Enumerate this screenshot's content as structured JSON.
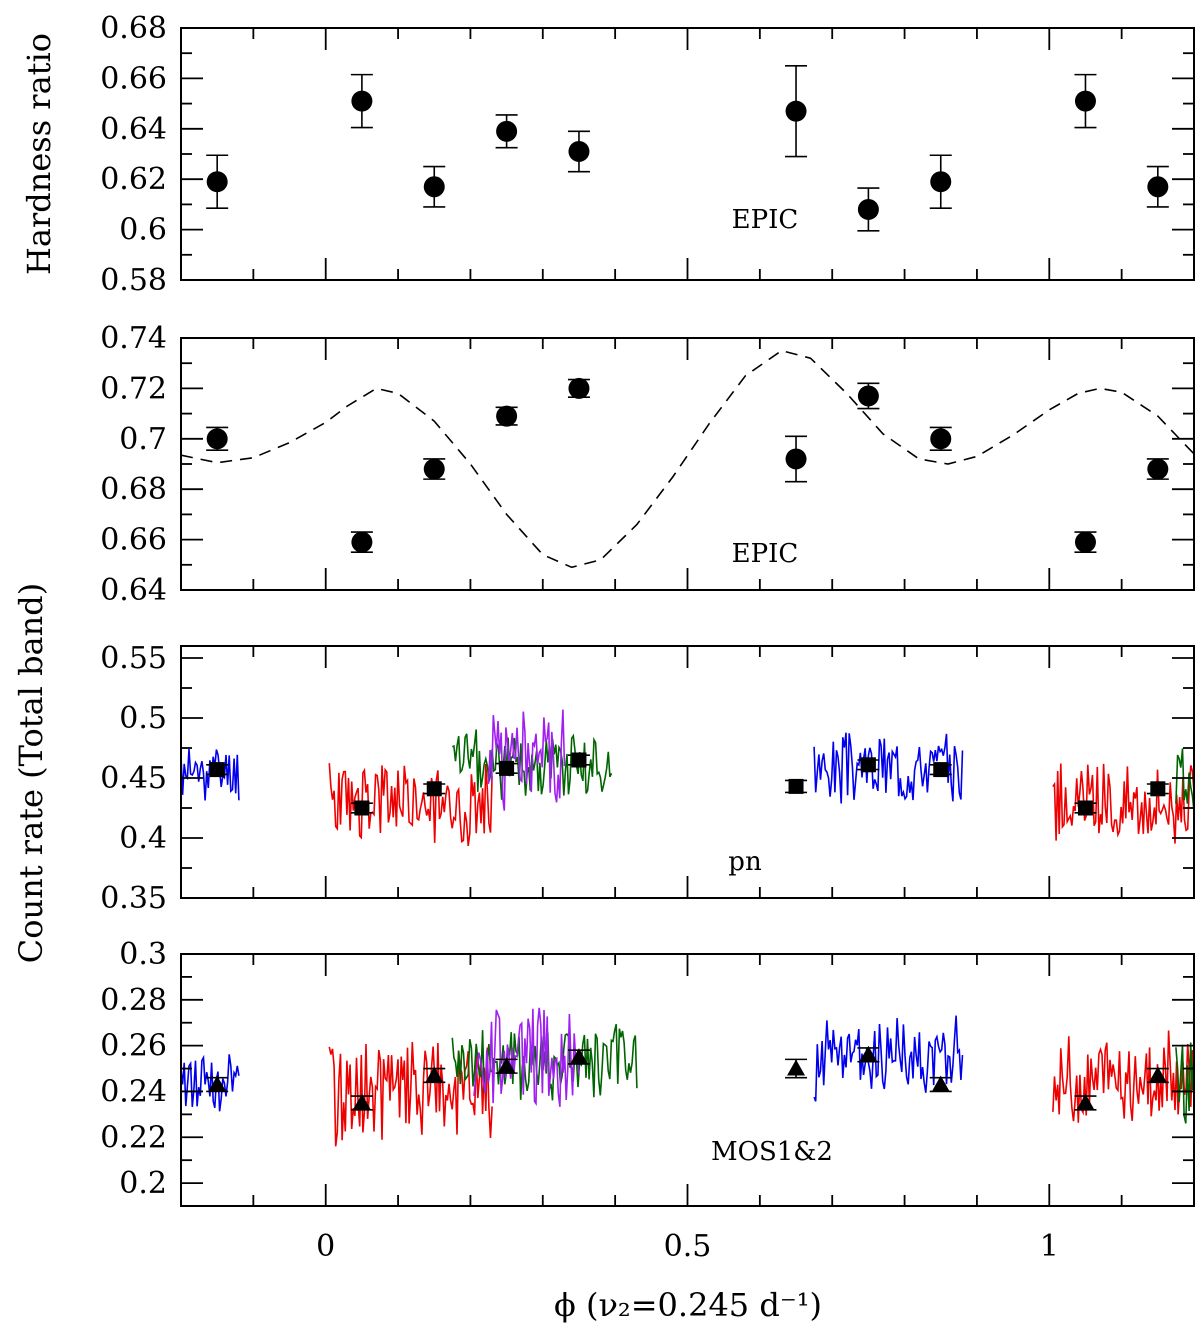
{
  "chart_data": [
    {
      "type": "scatter",
      "panel": "hardness-ratio",
      "xlim": [
        -0.2,
        1.2
      ],
      "ylim": [
        0.58,
        0.68
      ],
      "yticks": [
        "0.58",
        "0.6",
        "0.62",
        "0.64",
        "0.66",
        "0.68"
      ],
      "ylabel": "Hardness ratio",
      "annotation": "EPIC",
      "marker": "circle",
      "points": [
        {
          "x": -0.15,
          "y": 0.619,
          "err": 0.0105
        },
        {
          "x": 0.05,
          "y": 0.651,
          "err": 0.0105
        },
        {
          "x": 0.15,
          "y": 0.617,
          "err": 0.008
        },
        {
          "x": 0.25,
          "y": 0.639,
          "err": 0.0065
        },
        {
          "x": 0.35,
          "y": 0.631,
          "err": 0.008
        },
        {
          "x": 0.65,
          "y": 0.647,
          "err": 0.018
        },
        {
          "x": 0.75,
          "y": 0.608,
          "err": 0.0085
        },
        {
          "x": 0.85,
          "y": 0.619,
          "err": 0.0105
        },
        {
          "x": 1.05,
          "y": 0.651,
          "err": 0.0105
        },
        {
          "x": 1.15,
          "y": 0.617,
          "err": 0.008
        }
      ]
    },
    {
      "type": "scatter",
      "panel": "count-rate-epic",
      "xlim": [
        -0.2,
        1.2
      ],
      "ylim": [
        0.64,
        0.74
      ],
      "yticks": [
        "0.64",
        "0.66",
        "0.68",
        "0.7",
        "0.72",
        "0.74"
      ],
      "annotation": "EPIC",
      "marker": "circle",
      "model_curve": "dashed",
      "points": [
        {
          "x": -0.15,
          "y": 0.7,
          "err": 0.0045
        },
        {
          "x": 0.05,
          "y": 0.659,
          "err": 0.004
        },
        {
          "x": 0.15,
          "y": 0.688,
          "err": 0.004
        },
        {
          "x": 0.25,
          "y": 0.709,
          "err": 0.0035
        },
        {
          "x": 0.35,
          "y": 0.72,
          "err": 0.0035
        },
        {
          "x": 0.65,
          "y": 0.692,
          "err": 0.009
        },
        {
          "x": 0.75,
          "y": 0.717,
          "err": 0.005
        },
        {
          "x": 0.85,
          "y": 0.7,
          "err": 0.0045
        },
        {
          "x": 1.05,
          "y": 0.659,
          "err": 0.004
        },
        {
          "x": 1.15,
          "y": 0.688,
          "err": 0.004
        }
      ],
      "model": [
        {
          "x": -0.2,
          "y": 0.6935
        },
        {
          "x": -0.15,
          "y": 0.6905
        },
        {
          "x": -0.1,
          "y": 0.6925
        },
        {
          "x": -0.05,
          "y": 0.6985
        },
        {
          "x": 0.0,
          "y": 0.7065
        },
        {
          "x": 0.03,
          "y": 0.713
        },
        {
          "x": 0.07,
          "y": 0.72
        },
        {
          "x": 0.1,
          "y": 0.718
        },
        {
          "x": 0.15,
          "y": 0.707
        },
        {
          "x": 0.2,
          "y": 0.69
        },
        {
          "x": 0.25,
          "y": 0.67
        },
        {
          "x": 0.3,
          "y": 0.654
        },
        {
          "x": 0.34,
          "y": 0.649
        },
        {
          "x": 0.38,
          "y": 0.652
        },
        {
          "x": 0.43,
          "y": 0.666
        },
        {
          "x": 0.48,
          "y": 0.685
        },
        {
          "x": 0.53,
          "y": 0.706
        },
        {
          "x": 0.58,
          "y": 0.725
        },
        {
          "x": 0.63,
          "y": 0.735
        },
        {
          "x": 0.67,
          "y": 0.732
        },
        {
          "x": 0.72,
          "y": 0.718
        },
        {
          "x": 0.77,
          "y": 0.702
        },
        {
          "x": 0.82,
          "y": 0.692
        },
        {
          "x": 0.86,
          "y": 0.69
        },
        {
          "x": 0.9,
          "y": 0.693
        },
        {
          "x": 0.95,
          "y": 0.7015
        },
        {
          "x": 1.0,
          "y": 0.7115
        },
        {
          "x": 1.04,
          "y": 0.718
        },
        {
          "x": 1.07,
          "y": 0.72
        },
        {
          "x": 1.1,
          "y": 0.7185
        },
        {
          "x": 1.15,
          "y": 0.709
        },
        {
          "x": 1.2,
          "y": 0.694
        }
      ]
    },
    {
      "type": "scatter",
      "panel": "count-rate-pn",
      "xlim": [
        -0.2,
        1.2
      ],
      "ylim": [
        0.35,
        0.56
      ],
      "yticks": [
        "0.35",
        "0.4",
        "0.45",
        "0.5",
        "0.55"
      ],
      "annotation": "pn",
      "marker": "square",
      "points": [
        {
          "x": -0.15,
          "y": 0.457,
          "err": 0.004
        },
        {
          "x": 0.05,
          "y": 0.425,
          "err": 0.004
        },
        {
          "x": 0.15,
          "y": 0.441,
          "err": 0.004
        },
        {
          "x": 0.25,
          "y": 0.458,
          "err": 0.004
        },
        {
          "x": 0.35,
          "y": 0.465,
          "err": 0.004
        },
        {
          "x": 0.65,
          "y": 0.443,
          "err": 0.005
        },
        {
          "x": 0.75,
          "y": 0.461,
          "err": 0.004
        },
        {
          "x": 0.85,
          "y": 0.457,
          "err": 0.004
        },
        {
          "x": 1.05,
          "y": 0.425,
          "err": 0.004
        },
        {
          "x": 1.15,
          "y": 0.441,
          "err": 0.004
        }
      ],
      "series": [
        {
          "color": "#0000ee",
          "x0": -0.2,
          "x1": -0.12,
          "mean": 0.455,
          "amp": 0.02,
          "seed": 11
        },
        {
          "color": "#ee0000",
          "x0": 0.005,
          "x1": 0.23,
          "mean": 0.43,
          "amp": 0.03,
          "seed": 23
        },
        {
          "color": "#006400",
          "x0": 0.175,
          "x1": 0.395,
          "mean": 0.462,
          "amp": 0.025,
          "seed": 37
        },
        {
          "color": "#a020f0",
          "x0": 0.225,
          "x1": 0.33,
          "mean": 0.467,
          "amp": 0.04,
          "seed": 51
        },
        {
          "color": "#0000ee",
          "x0": 0.675,
          "x1": 0.88,
          "mean": 0.46,
          "amp": 0.025,
          "seed": 67
        },
        {
          "color": "#ee0000",
          "x0": 1.005,
          "x1": 1.2,
          "mean": 0.43,
          "amp": 0.03,
          "seed": 79
        },
        {
          "color": "#006400",
          "x0": 1.175,
          "x1": 1.2,
          "mean": 0.455,
          "amp": 0.03,
          "seed": 89
        }
      ]
    },
    {
      "type": "scatter",
      "panel": "count-rate-mos",
      "xlim": [
        -0.2,
        1.2
      ],
      "ylim": [
        0.19,
        0.3
      ],
      "yticks": [
        "0.2",
        "0.22",
        "0.24",
        "0.26",
        "0.28",
        "0.3"
      ],
      "annotation": "MOS1&2",
      "marker": "triangle",
      "points": [
        {
          "x": -0.15,
          "y": 0.243,
          "err": 0.003
        },
        {
          "x": 0.05,
          "y": 0.235,
          "err": 0.003
        },
        {
          "x": 0.15,
          "y": 0.247,
          "err": 0.003
        },
        {
          "x": 0.25,
          "y": 0.251,
          "err": 0.003
        },
        {
          "x": 0.35,
          "y": 0.255,
          "err": 0.003
        },
        {
          "x": 0.65,
          "y": 0.25,
          "err": 0.004
        },
        {
          "x": 0.75,
          "y": 0.256,
          "err": 0.003
        },
        {
          "x": 0.85,
          "y": 0.243,
          "err": 0.003
        },
        {
          "x": 1.05,
          "y": 0.235,
          "err": 0.003
        },
        {
          "x": 1.15,
          "y": 0.247,
          "err": 0.003
        }
      ],
      "series": [
        {
          "color": "#0000ee",
          "x0": -0.2,
          "x1": -0.12,
          "mean": 0.245,
          "amp": 0.012,
          "seed": 13
        },
        {
          "color": "#ee0000",
          "x0": 0.005,
          "x1": 0.23,
          "mean": 0.24,
          "amp": 0.02,
          "seed": 29
        },
        {
          "color": "#006400",
          "x0": 0.175,
          "x1": 0.43,
          "mean": 0.252,
          "amp": 0.015,
          "seed": 41
        },
        {
          "color": "#a020f0",
          "x0": 0.205,
          "x1": 0.35,
          "mean": 0.255,
          "amp": 0.02,
          "seed": 53
        },
        {
          "color": "#0000ee",
          "x0": 0.675,
          "x1": 0.88,
          "mean": 0.255,
          "amp": 0.015,
          "seed": 71
        },
        {
          "color": "#ee0000",
          "x0": 1.005,
          "x1": 1.2,
          "mean": 0.245,
          "amp": 0.018,
          "seed": 83
        },
        {
          "color": "#006400",
          "x0": 1.175,
          "x1": 1.2,
          "mean": 0.245,
          "amp": 0.02,
          "seed": 97
        }
      ]
    }
  ],
  "shared": {
    "xticks": [
      {
        "value": 0,
        "label": "0"
      },
      {
        "value": 0.5,
        "label": "0.5"
      },
      {
        "value": 1,
        "label": "1"
      }
    ],
    "ylabel_lower": "Count rate (Total band)",
    "xlabel": "ϕ (ν₂=0.245 d⁻¹)"
  }
}
